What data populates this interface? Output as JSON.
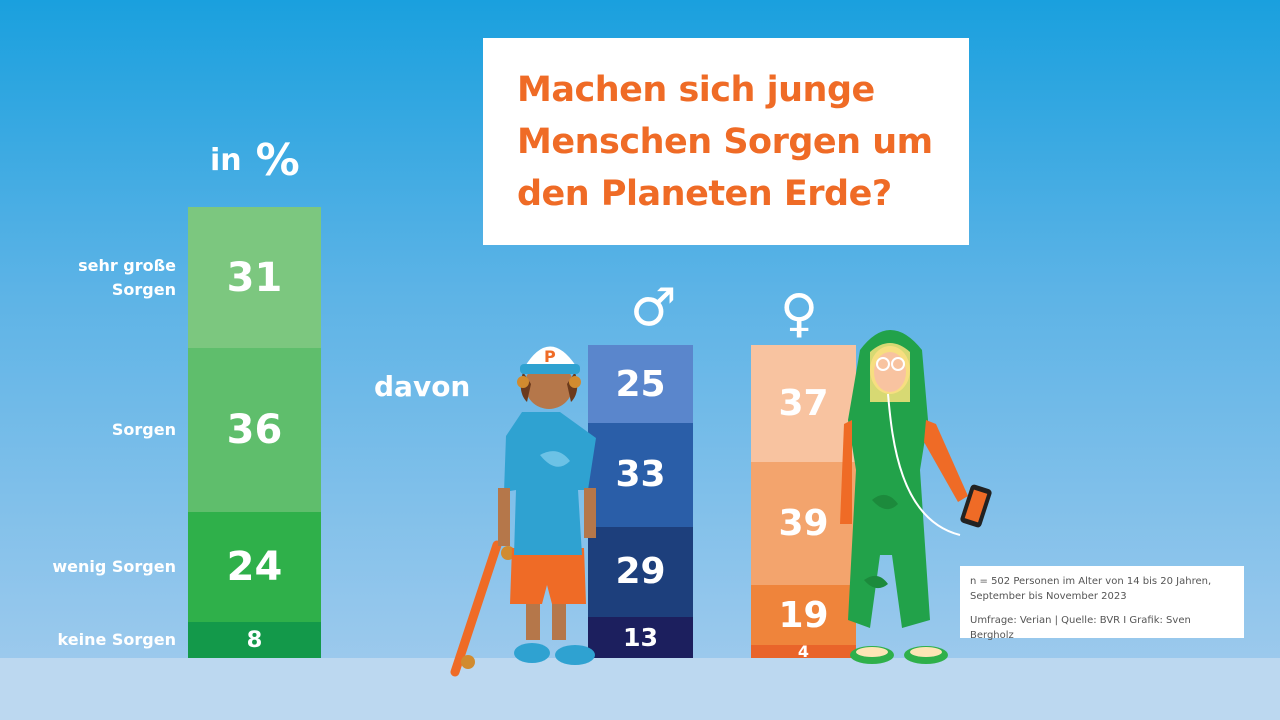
{
  "title_lines": [
    "Machen sich junge",
    "Menschen Sorgen um",
    "den Planeten Erde?"
  ],
  "unit_in": "in",
  "unit_pct": "%",
  "davon": "davon",
  "male_symbol": "♂",
  "female_symbol": "♀",
  "note": {
    "line1": "n = 502 Personen im Alter von 14 bis 20 Jahren,",
    "line2": "September bis November 2023",
    "source": "Umfrage: Verian | Quelle: BVR I Grafik: Sven Bergholz"
  },
  "colors": {
    "title": "#ef6b26",
    "total": [
      "#7cc77f",
      "#5fbe6c",
      "#2fb04a",
      "#13994a"
    ],
    "male": [
      "#5a86cc",
      "#2a5ea8",
      "#1d3f7c",
      "#1c1f5e"
    ],
    "female": [
      "#f8c3a0",
      "#f3a46d",
      "#ef843b",
      "#e9642a"
    ]
  },
  "chart_data": {
    "type": "bar",
    "stacked": true,
    "categories": [
      "sehr große Sorgen",
      "Sorgen",
      "wenig Sorgen",
      "keine Sorgen"
    ],
    "category_labels": [
      [
        "sehr große",
        "Sorgen"
      ],
      [
        "Sorgen"
      ],
      [
        "wenig Sorgen"
      ],
      [
        "keine Sorgen"
      ]
    ],
    "series": [
      {
        "name": "",
        "values": [
          31,
          36,
          24,
          8
        ]
      },
      {
        "name": "♂",
        "values": [
          25,
          33,
          29,
          13
        ]
      },
      {
        "name": "♀",
        "values": [
          37,
          39,
          19,
          4
        ]
      }
    ],
    "ylabel": "in %"
  }
}
